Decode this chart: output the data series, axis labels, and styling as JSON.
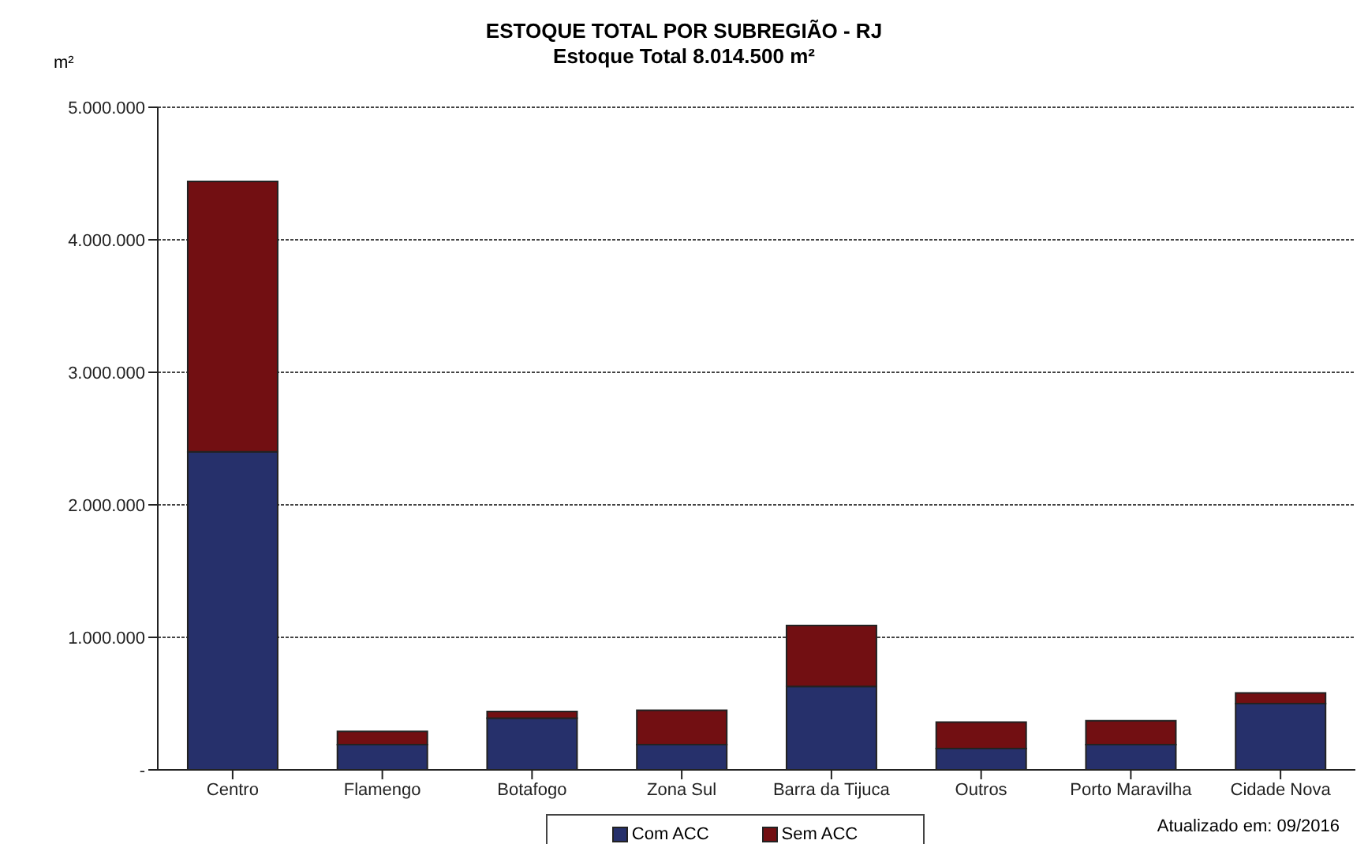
{
  "chart_data": {
    "type": "bar",
    "title": "ESTOQUE TOTAL POR SUBREGIÃO - RJ",
    "subtitle": "Estoque Total 8.014.500 m²",
    "ylabel": "m²",
    "categories": [
      "Centro",
      "Flamengo",
      "Botafogo",
      "Zona Sul",
      "Barra da Tijuca",
      "Outros",
      "Porto Maravilha",
      "Cidade Nova"
    ],
    "series": [
      {
        "name": "Com ACC",
        "color": "#26306b",
        "values": [
          2400000,
          190000,
          390000,
          190000,
          630000,
          160000,
          190000,
          500000
        ]
      },
      {
        "name": "Sem ACC",
        "color": "#720f12",
        "values": [
          2040000,
          100000,
          50000,
          260000,
          460000,
          200000,
          180000,
          80000
        ]
      }
    ],
    "stacked": true,
    "ylim": [
      0,
      5000000
    ],
    "yticks": [
      {
        "value": 0,
        "label": "-"
      },
      {
        "value": 1000000,
        "label": "1.000.000"
      },
      {
        "value": 2000000,
        "label": "2.000.000"
      },
      {
        "value": 3000000,
        "label": "3.000.000"
      },
      {
        "value": 4000000,
        "label": "4.000.000"
      },
      {
        "value": 5000000,
        "label": "5.000.000"
      }
    ],
    "grid": "y",
    "legend": "bottom",
    "annotations": [
      "Atualizado em: 09/2016"
    ]
  }
}
